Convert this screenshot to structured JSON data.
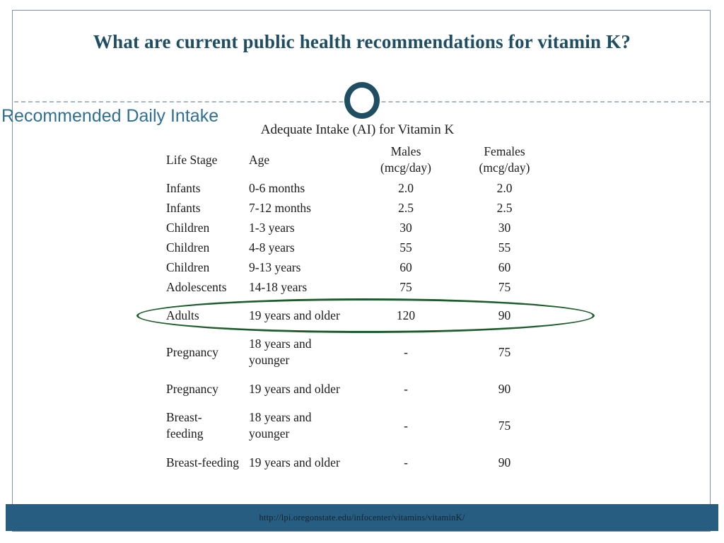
{
  "header": {
    "title": "What are current public health recommendations for vitamin K?"
  },
  "section": {
    "label": "Recommended Daily Intake"
  },
  "table": {
    "title": "Adequate Intake (AI) for Vitamin K",
    "headers": {
      "life_stage": "Life Stage",
      "age": "Age",
      "males_line1": "Males",
      "males_line2": "(mcg/day)",
      "females_line1": "Females",
      "females_line2": "(mcg/day)"
    },
    "rows": [
      {
        "life_stage": "Infants",
        "age": "0-6 months",
        "males": "2.0",
        "females": "2.0"
      },
      {
        "life_stage": "Infants",
        "age": "7-12 months",
        "males": "2.5",
        "females": "2.5"
      },
      {
        "life_stage": "Children",
        "age": "1-3 years",
        "males": "30",
        "females": "30"
      },
      {
        "life_stage": "Children",
        "age": "4-8 years",
        "males": "55",
        "females": "55"
      },
      {
        "life_stage": "Children",
        "age": "9-13 years",
        "males": "60",
        "females": "60"
      },
      {
        "life_stage": "Adolescents",
        "age": "14-18 years",
        "males": "75",
        "females": "75"
      },
      {
        "life_stage": "Adults",
        "age": "19 years and older",
        "males": "120",
        "females": "90",
        "tall": true,
        "circled": true
      },
      {
        "life_stage": "Pregnancy",
        "age": "18 years and younger",
        "males": "-",
        "females": "75",
        "tall": true
      },
      {
        "life_stage": "Pregnancy",
        "age": "19 years and older",
        "males": "-",
        "females": "90",
        "tall": true
      },
      {
        "life_stage": "Breast-feeding",
        "life_stage_display": "Breast-\nfeeding",
        "age": "18 years and younger",
        "males": "-",
        "females": "75",
        "tall": true
      },
      {
        "life_stage": "Breast-feeding",
        "age": "19 years and older",
        "males": "-",
        "females": "90",
        "tall": true,
        "nowrap": true
      }
    ]
  },
  "footer": {
    "source_url": "http://lpi.oregonstate.edu/infocenter/vitamins/vitaminK/"
  },
  "colors": {
    "title_text": "#1f4e63",
    "section_label_text": "#2f6f92",
    "frame_border": "#7e94a6",
    "divider_dashes": "#8d9dab",
    "circle_ring": "#1f4e63",
    "highlight_ellipse": "#1d5c2b",
    "footer_bar": "#275d80",
    "footer_text": "#14242e",
    "table_text": "#1b1b1b"
  }
}
